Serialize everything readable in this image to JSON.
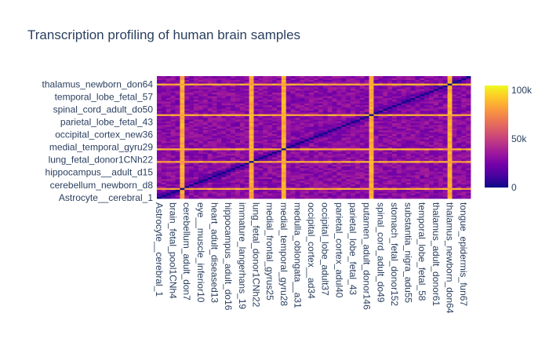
{
  "chart_data": {
    "type": "heatmap",
    "title": "Transcription profiling of human brain samples",
    "xlabel": "",
    "ylabel": "",
    "n": 68,
    "y_tick_labels": [
      "Astrocyte__cerebral_1",
      "cerebellum_newborn_d8",
      "hippocampus__adult_d15",
      "lung_fetal_donor1CNh22",
      "medial_temporal_gyru29",
      "occipital_cortex_new36",
      "parietal_lobe_fetal_43",
      "spinal_cord_adult_do50",
      "temporal_lobe_fetal_57",
      "thalamus_newborn_don64"
    ],
    "x_tick_labels": [
      "Astrocyte__cerebral_1",
      "brain_fetal_pool1CNh4",
      "cerebellum_adult_don7",
      "eye__muscle_inferior10",
      "heart_adult_diseased13",
      "hippocampus_adult_do16",
      "immature_langerhans_19",
      "lung_fetal_donor1CNh22",
      "medial_frontal_gyrus25",
      "medial_temporal_gyru28",
      "medulla_oblongata__a31",
      "occipital_cortex__ad34",
      "occipital_lobe_adult37",
      "parietal_cortex_adul40",
      "parietal_lobe_fetal_43",
      "putamen_adult_donor146",
      "spinal_cord_adult_do49",
      "stomach_fetal_donor152",
      "substantia_nigra_adu55",
      "temporal_lobe_fetal_58",
      "thalamus_adult_donor61",
      "thalamus_newborn_don64",
      "tongue_epidermis_fun67"
    ],
    "zlim": [
      0,
      105000
    ],
    "colorbar_ticks": [
      {
        "value": 0,
        "label": "0"
      },
      {
        "value": 50000,
        "label": "50k"
      },
      {
        "value": 100000,
        "label": "100k"
      }
    ],
    "colorscale": [
      "#0d0887",
      "#46039f",
      "#7201a8",
      "#9c179e",
      "#bd3786",
      "#d8576b",
      "#ed7953",
      "#fb9f3a",
      "#fdca26",
      "#f0f921"
    ],
    "diagonal_value": 0,
    "base_value": 30000,
    "outlier_indices": [
      5,
      20,
      27,
      46,
      63
    ],
    "outlier_value": 85000,
    "notes_visible": "symmetric distance matrix; zero diagonal; bright stripes at a few samples"
  }
}
